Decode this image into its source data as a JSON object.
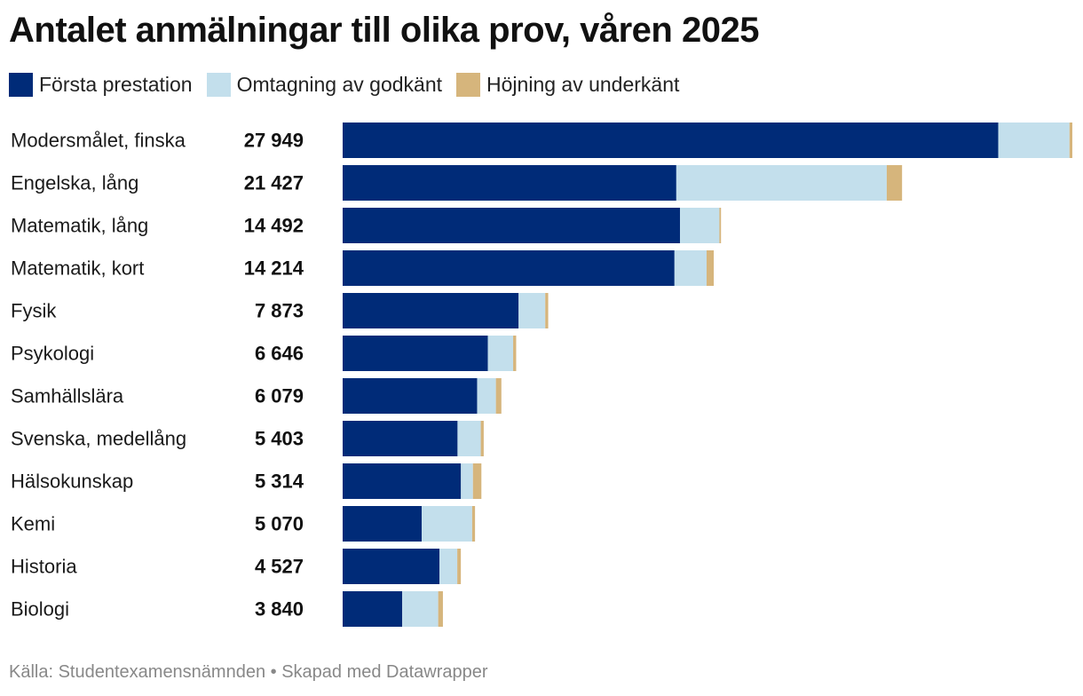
{
  "title": "Antalet anmälningar till olika prov, våren 2025",
  "source": "Källa: Studentexamensnämnden • Skapad med Datawrapper",
  "colors": {
    "first": "#002b78",
    "retake": "#c3dfec",
    "raise": "#d6b57c"
  },
  "chart_data": {
    "type": "bar",
    "orientation": "horizontal",
    "stacked": true,
    "title": "Antalet anmälningar till olika prov, våren 2025",
    "legend_position": "top",
    "categories": [
      "Modersmålet, finska",
      "Engelska, lång",
      "Matematik, lång",
      "Matematik, kort",
      "Fysik",
      "Psykologi",
      "Samhällslära",
      "Svenska, medellång",
      "Hälsokunskap",
      "Kemi",
      "Historia",
      "Biologi"
    ],
    "totals": [
      "27 949",
      "21 427",
      "14 492",
      "14 214",
      "7 873",
      "6 646",
      "6 079",
      "5 403",
      "5 314",
      "5 070",
      "4 527",
      "3 840"
    ],
    "total_values": [
      27949,
      21427,
      14492,
      14214,
      7873,
      6646,
      6079,
      5403,
      5314,
      5070,
      4527,
      3840
    ],
    "series": [
      {
        "name": "Första prestation",
        "color": "#002b78",
        "values": [
          25110,
          12780,
          12920,
          12710,
          6740,
          5560,
          5150,
          4400,
          4530,
          3030,
          3710,
          2280
        ]
      },
      {
        "name": "Omtagning av godkänt",
        "color": "#c3dfec",
        "values": [
          2730,
          8060,
          1510,
          1230,
          1020,
          970,
          720,
          890,
          460,
          1930,
          680,
          1380
        ]
      },
      {
        "name": "Höjning av underkänt",
        "color": "#d6b57c",
        "values": [
          109,
          587,
          62,
          274,
          113,
          116,
          209,
          113,
          324,
          110,
          137,
          180
        ]
      }
    ],
    "xlim": [
      0,
      27949
    ],
    "grid": false
  }
}
